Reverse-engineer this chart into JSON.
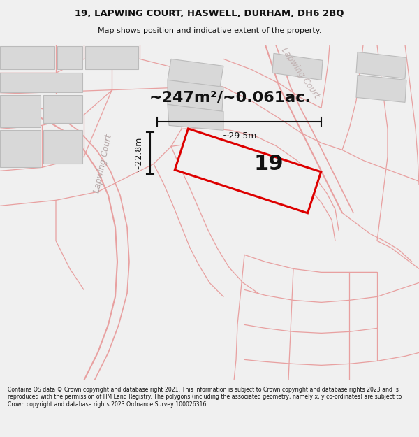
{
  "title": "19, LAPWING COURT, HASWELL, DURHAM, DH6 2BQ",
  "subtitle": "Map shows position and indicative extent of the property.",
  "area_text": "~247m²/~0.061ac.",
  "label_19": "19",
  "dim_width": "~29.5m",
  "dim_height": "~22.8m",
  "footer": "Contains OS data © Crown copyright and database right 2021. This information is subject to Crown copyright and database rights 2023 and is reproduced with the permission of HM Land Registry. The polygons (including the associated geometry, namely x, y co-ordinates) are subject to Crown copyright and database rights 2023 Ordnance Survey 100026316.",
  "bg_color": "#f0f0f0",
  "map_bg": "#ffffff",
  "building_fill": "#d8d8d8",
  "building_outline": "#bbbbbb",
  "boundary_color": "#e8a0a0",
  "plot_fill": "#e0e0e0",
  "plot_outline": "#dd0000",
  "dim_color": "#111111",
  "street_label_color": "#b0a0a0",
  "street_label2_color": "#c0b0b0"
}
